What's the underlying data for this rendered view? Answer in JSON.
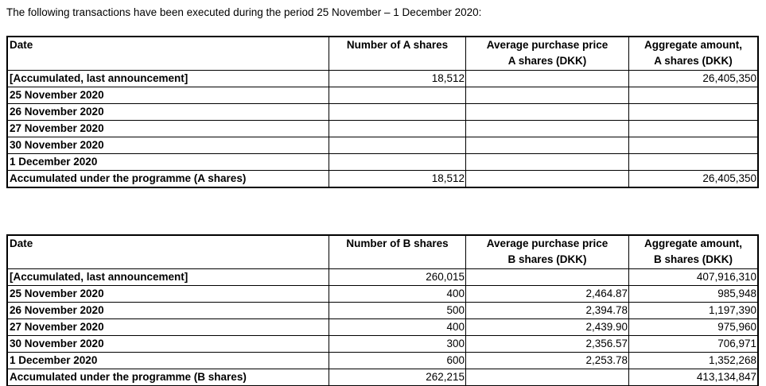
{
  "intro": "The following transactions have been executed during the period 25 November – 1 December 2020:",
  "tables": [
    {
      "name": "a-shares-table",
      "col_names": [
        "date",
        "number-of-a-shares",
        "average-purchase-price-a",
        "aggregate-amount-a"
      ],
      "headers": [
        [
          "Date"
        ],
        [
          "Number of A shares"
        ],
        [
          "Average purchase price",
          "A shares (DKK)"
        ],
        [
          "Aggregate amount,",
          "A shares (DKK)"
        ]
      ],
      "rows": [
        [
          "[Accumulated, last announcement]",
          "18,512",
          "",
          "26,405,350"
        ],
        [
          "25 November 2020",
          "",
          "",
          ""
        ],
        [
          "26 November 2020",
          "",
          "",
          ""
        ],
        [
          "27 November 2020",
          "",
          "",
          ""
        ],
        [
          "30 November 2020",
          "",
          "",
          ""
        ],
        [
          "1 December 2020",
          "",
          "",
          ""
        ],
        [
          "Accumulated under the programme (A shares)",
          "18,512",
          "",
          "26,405,350"
        ]
      ]
    },
    {
      "name": "b-shares-table",
      "col_names": [
        "date",
        "number-of-b-shares",
        "average-purchase-price-b",
        "aggregate-amount-b"
      ],
      "headers": [
        [
          "Date"
        ],
        [
          "Number of B shares"
        ],
        [
          "Average purchase price",
          "B shares (DKK)"
        ],
        [
          "Aggregate amount,",
          "B shares (DKK)"
        ]
      ],
      "rows": [
        [
          "[Accumulated, last announcement]",
          "260,015",
          "",
          "407,916,310"
        ],
        [
          "25 November 2020",
          "400",
          "2,464.87",
          "985,948"
        ],
        [
          "26 November 2020",
          "500",
          "2,394.78",
          "1,197,390"
        ],
        [
          "27 November 2020",
          "400",
          "2,439.90",
          "975,960"
        ],
        [
          "30 November 2020",
          "300",
          "2,356.57",
          "706,971"
        ],
        [
          "1 December 2020",
          "600",
          "2,253.78",
          "1,352,268"
        ],
        [
          "Accumulated under the programme (B shares)",
          "262,215",
          "",
          "413,134,847"
        ]
      ]
    }
  ]
}
